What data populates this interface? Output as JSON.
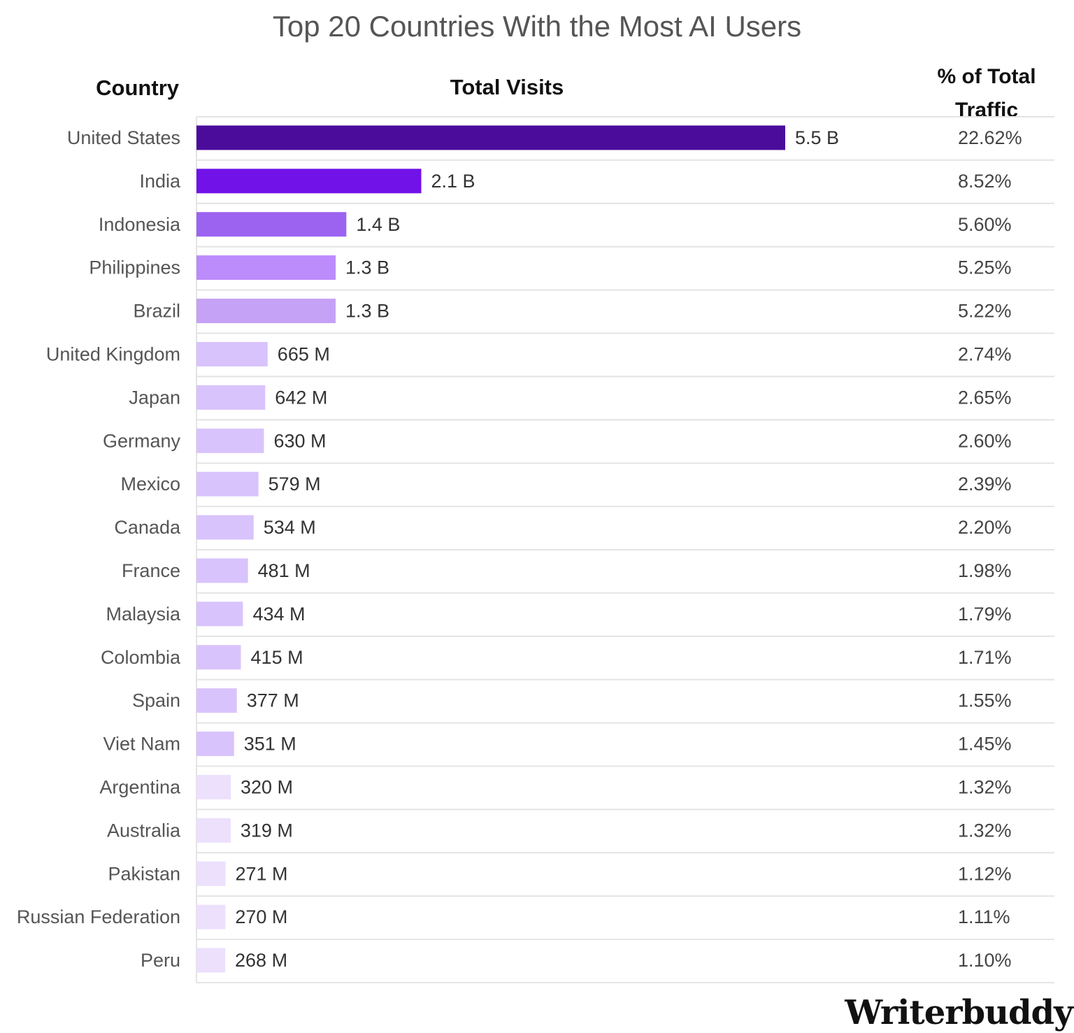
{
  "chart_data": {
    "type": "bar",
    "orientation": "horizontal",
    "title": "Top 20 Countries With the Most AI Users",
    "column_headers": {
      "country": "Country",
      "visits": "Total Visits",
      "pct_line1": "% of Total",
      "pct_line2": "Traffic"
    },
    "categories": [
      "United States",
      "India",
      "Indonesia",
      "Philippines",
      "Brazil",
      "United Kingdom",
      "Japan",
      "Germany",
      "Mexico",
      "Canada",
      "France",
      "Malaysia",
      "Colombia",
      "Spain",
      "Viet Nam",
      "Argentina",
      "Australia",
      "Pakistan",
      "Russian Federation",
      "Peru"
    ],
    "values": [
      5500,
      2100,
      1400,
      1300,
      1300,
      665,
      642,
      630,
      579,
      534,
      481,
      434,
      415,
      377,
      351,
      320,
      319,
      271,
      270,
      268
    ],
    "value_unit": "M",
    "value_labels": [
      "5.5 B",
      "2.1 B",
      "1.4 B",
      "1.3 B",
      "1.3 B",
      "665 M",
      "642 M",
      "630 M",
      "579 M",
      "534 M",
      "481 M",
      "434 M",
      "415 M",
      "377 M",
      "351 M",
      "320 M",
      "319 M",
      "271 M",
      "270 M",
      "268 M"
    ],
    "percent_labels": [
      "22.62%",
      "8.52%",
      "5.60%",
      "5.25%",
      "5.22%",
      "2.74%",
      "2.65%",
      "2.60%",
      "2.39%",
      "2.20%",
      "1.98%",
      "1.79%",
      "1.71%",
      "1.55%",
      "1.45%",
      "1.32%",
      "1.32%",
      "1.12%",
      "1.11%",
      "1.10%"
    ],
    "bar_colors": [
      "#4b0c9b",
      "#7112e8",
      "#9c63f1",
      "#bc8bfc",
      "#c5a2f6",
      "#d9c3fc",
      "#d9c3fc",
      "#d9c3fc",
      "#d9c3fc",
      "#d9c3fc",
      "#d9c3fc",
      "#d9c3fc",
      "#d9c3fc",
      "#d9c3fc",
      "#d9c3fc",
      "#ece0fd",
      "#ece0fd",
      "#ece0fd",
      "#ece0fd",
      "#ece0fd"
    ],
    "grid": "horizontal separators",
    "legend": "none"
  },
  "brand": {
    "logo_text": "Writerbuddy"
  }
}
